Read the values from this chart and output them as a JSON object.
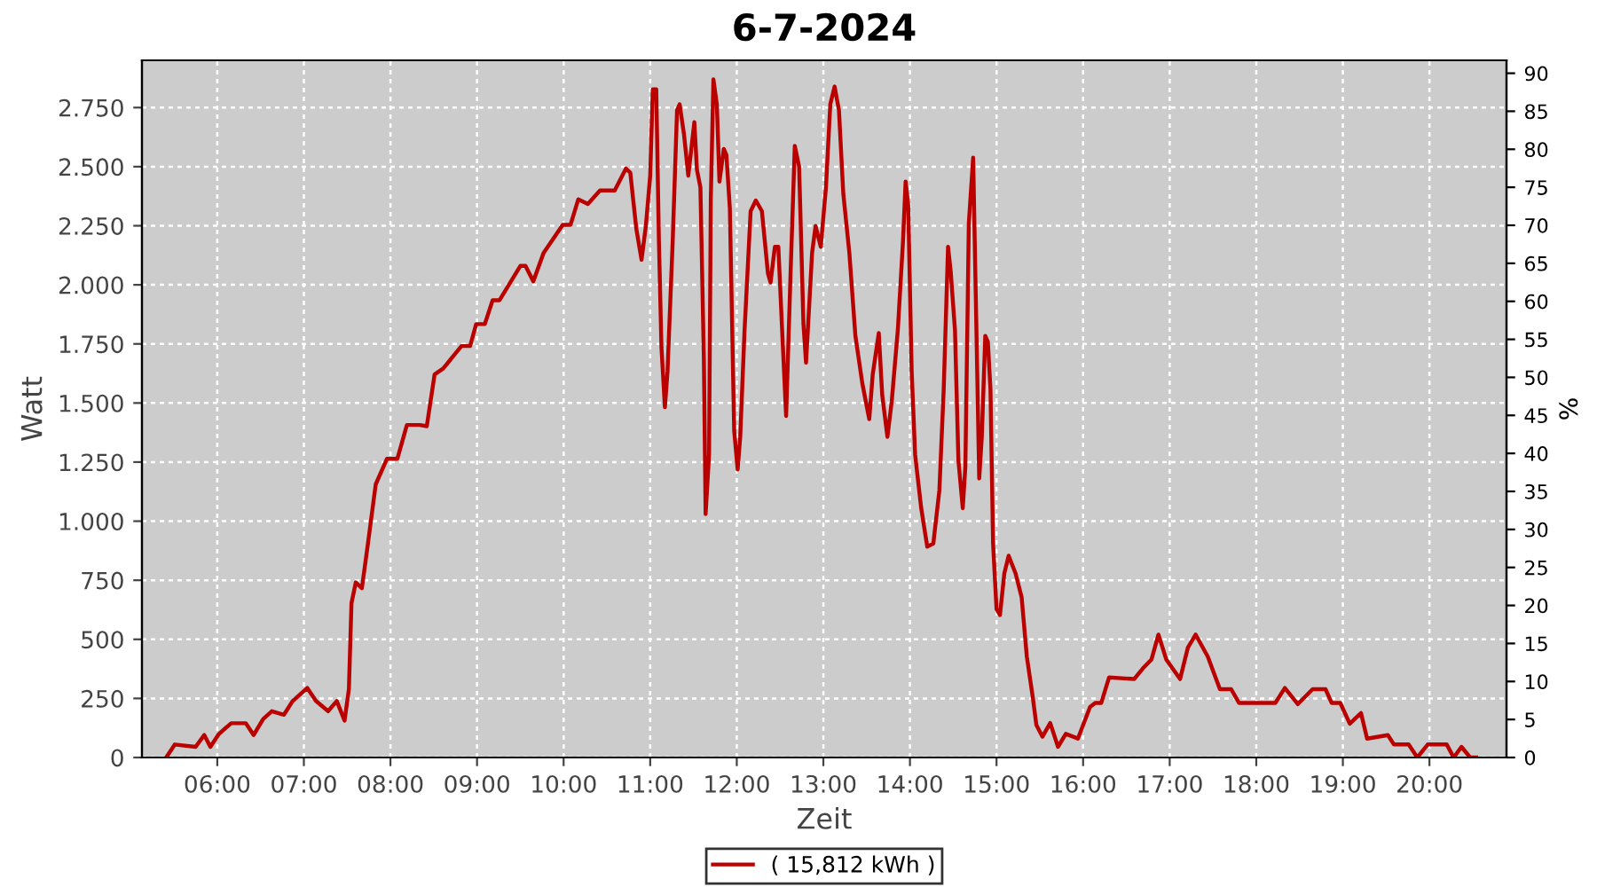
{
  "chart_data": {
    "type": "line",
    "title": "6-7-2024",
    "xlabel": "Zeit",
    "ylabel": "Watt",
    "y2label": "%",
    "xlim": [
      5.13,
      20.89
    ],
    "xticks": [
      {
        "value": 6,
        "label": "06:00"
      },
      {
        "value": 7,
        "label": "07:00"
      },
      {
        "value": 8,
        "label": "08:00"
      },
      {
        "value": 9,
        "label": "09:00"
      },
      {
        "value": 10,
        "label": "10:00"
      },
      {
        "value": 11,
        "label": "11:00"
      },
      {
        "value": 12,
        "label": "12:00"
      },
      {
        "value": 13,
        "label": "13:00"
      },
      {
        "value": 14,
        "label": "14:00"
      },
      {
        "value": 15,
        "label": "15:00"
      },
      {
        "value": 16,
        "label": "16:00"
      },
      {
        "value": 17,
        "label": "17:00"
      },
      {
        "value": 18,
        "label": "18:00"
      },
      {
        "value": 19,
        "label": "19:00"
      },
      {
        "value": 20,
        "label": "20:00"
      }
    ],
    "ylim": [
      0,
      2950
    ],
    "yticks": [
      0,
      250,
      500,
      750,
      {
        "value": 1000,
        "label": "1.000"
      },
      {
        "value": 1250,
        "label": "1.250"
      },
      {
        "value": 1500,
        "label": "1.500"
      },
      {
        "value": 1750,
        "label": "1.750"
      },
      {
        "value": 2000,
        "label": "2.000"
      },
      {
        "value": 2250,
        "label": "2.250"
      },
      {
        "value": 2500,
        "label": "2.500"
      },
      {
        "value": 2750,
        "label": "2.750"
      }
    ],
    "y2lim": [
      0,
      91.7
    ],
    "y2ticks": [
      0,
      5,
      10,
      15,
      20,
      25,
      30,
      35,
      40,
      45,
      50,
      55,
      60,
      65,
      70,
      75,
      80,
      85,
      90
    ],
    "grid": true,
    "legend": "bottom",
    "marker": "none",
    "line_style": "solid",
    "series": [
      {
        "name": "( 15,812 kWh )",
        "color": "#bb0000",
        "x": [
          5.41,
          5.51,
          5.75,
          5.85,
          5.92,
          6.02,
          6.16,
          6.33,
          6.42,
          6.53,
          6.63,
          6.77,
          6.87,
          7.04,
          7.14,
          7.28,
          7.38,
          7.47,
          7.52,
          7.55,
          7.6,
          7.67,
          7.74,
          7.83,
          7.96,
          8.08,
          8.19,
          8.34,
          8.42,
          8.51,
          8.61,
          8.82,
          8.92,
          8.99,
          9.09,
          9.18,
          9.26,
          9.5,
          9.56,
          9.65,
          9.77,
          9.99,
          10.08,
          10.17,
          10.28,
          10.42,
          10.59,
          10.72,
          10.77,
          10.84,
          10.9,
          10.95,
          11.0,
          11.03,
          11.07,
          11.1,
          11.13,
          11.17,
          11.2,
          11.26,
          11.31,
          11.34,
          11.39,
          11.44,
          11.51,
          11.54,
          11.58,
          11.62,
          11.64,
          11.68,
          11.7,
          11.73,
          11.77,
          11.8,
          11.85,
          11.88,
          11.92,
          11.97,
          12.01,
          12.04,
          12.09,
          12.16,
          12.22,
          12.29,
          12.36,
          12.39,
          12.44,
          12.48,
          12.53,
          12.57,
          12.62,
          12.67,
          12.72,
          12.77,
          12.8,
          12.87,
          12.91,
          12.97,
          13.03,
          13.08,
          13.13,
          13.18,
          13.23,
          13.3,
          13.37,
          13.45,
          13.53,
          13.57,
          13.64,
          13.68,
          13.74,
          13.79,
          13.86,
          13.92,
          13.95,
          13.98,
          14.02,
          14.06,
          14.13,
          14.2,
          14.27,
          14.34,
          14.39,
          14.44,
          14.47,
          14.52,
          14.56,
          14.61,
          14.64,
          14.68,
          14.73,
          14.76,
          14.8,
          14.83,
          14.87,
          14.9,
          14.93,
          14.96,
          15.0,
          15.04,
          15.09,
          15.14,
          15.22,
          15.29,
          15.35,
          15.42,
          15.46,
          15.53,
          15.62,
          15.71,
          15.8,
          15.94,
          16.08,
          16.14,
          16.21,
          16.3,
          16.59,
          16.69,
          16.79,
          16.87,
          16.96,
          17.12,
          17.21,
          17.3,
          17.44,
          17.58,
          17.71,
          17.8,
          18.22,
          18.33,
          18.48,
          18.65,
          18.8,
          18.87,
          18.97,
          19.08,
          19.21,
          19.28,
          19.52,
          19.59,
          19.76,
          19.86,
          19.98,
          20.2,
          20.28,
          20.37,
          20.47,
          20.54
        ],
        "values": [
          0,
          55,
          45,
          95,
          45,
          100,
          145,
          145,
          95,
          163,
          196,
          181,
          239,
          294,
          239,
          196,
          239,
          156,
          289,
          653,
          741,
          716,
          905,
          1156,
          1264,
          1264,
          1407,
          1407,
          1402,
          1621,
          1646,
          1741,
          1741,
          1834,
          1834,
          1935,
          1935,
          2080,
          2080,
          2015,
          2136,
          2254,
          2254,
          2362,
          2342,
          2399,
          2399,
          2492,
          2475,
          2236,
          2106,
          2249,
          2462,
          2827,
          2827,
          2198,
          1734,
          1482,
          1633,
          2186,
          2739,
          2764,
          2638,
          2462,
          2688,
          2487,
          2412,
          1683,
          1030,
          1281,
          2362,
          2869,
          2764,
          2437,
          2575,
          2550,
          2324,
          1382,
          1219,
          1357,
          1809,
          2312,
          2357,
          2312,
          2048,
          2010,
          2161,
          2161,
          1759,
          1445,
          2035,
          2588,
          2500,
          1834,
          1671,
          2136,
          2249,
          2161,
          2412,
          2764,
          2839,
          2739,
          2387,
          2136,
          1784,
          1583,
          1432,
          1621,
          1796,
          1533,
          1357,
          1508,
          1809,
          2186,
          2437,
          2337,
          1633,
          1281,
          1055,
          892,
          905,
          1131,
          1558,
          2161,
          2060,
          1809,
          1256,
          1055,
          1231,
          2261,
          2538,
          1960,
          1181,
          1357,
          1784,
          1759,
          1558,
          905,
          628,
          603,
          779,
          854,
          779,
          678,
          427,
          251,
          138,
          88,
          146,
          45,
          100,
          80,
          214,
          231,
          231,
          339,
          332,
          377,
          415,
          520,
          415,
          332,
          465,
          520,
          427,
          289,
          289,
          231,
          231,
          294,
          226,
          289,
          289,
          231,
          231,
          143,
          188,
          80,
          95,
          55,
          55,
          0,
          55,
          55,
          0,
          45,
          0,
          0
        ]
      }
    ]
  }
}
